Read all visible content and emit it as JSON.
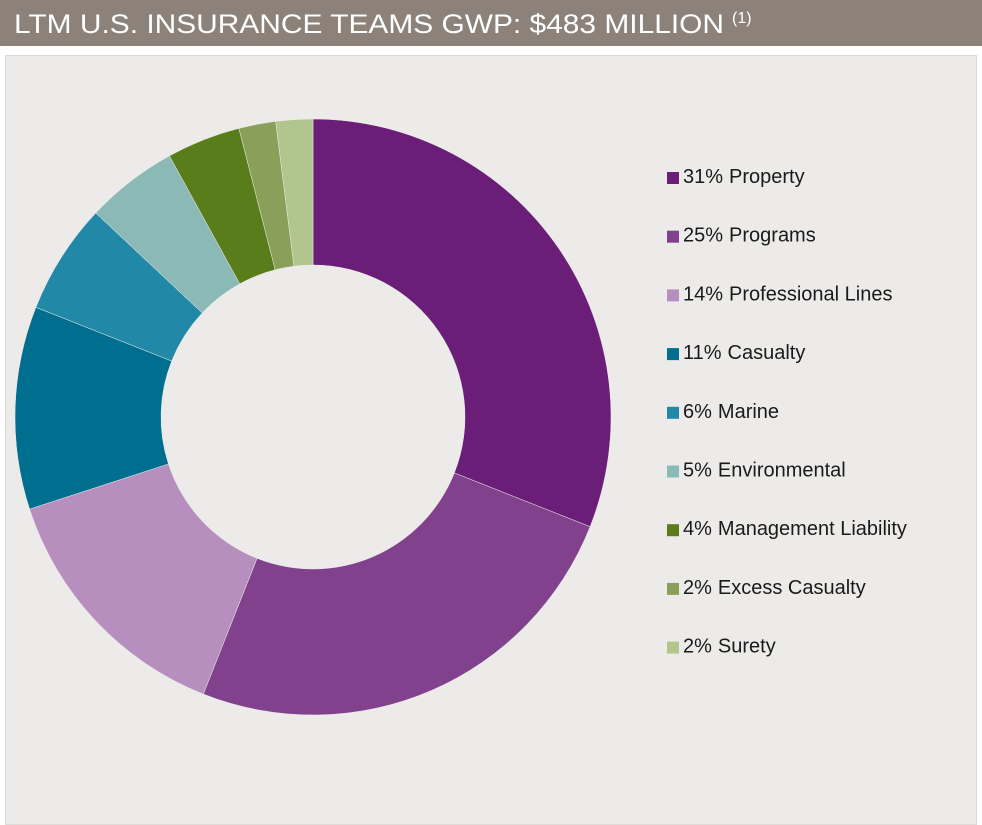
{
  "chart_data": {
    "type": "donut",
    "title": "LTM U.S. INSURANCE TEAMS GWP: $483 MILLION",
    "title_note": "(1)",
    "categories": [
      "Property",
      "Programs",
      "Professional Lines",
      "Casualty",
      "Marine",
      "Environmental",
      "Management Liability",
      "Excess Casualty",
      "Surety"
    ],
    "values": [
      31,
      25,
      14,
      11,
      6,
      5,
      4,
      2,
      2
    ],
    "value_labels": [
      "31%",
      "25%",
      "14%",
      "11%",
      "6%",
      "5%",
      "4%",
      "2%",
      "2%"
    ],
    "colors": [
      "#6b1e78",
      "#82418c",
      "#b78fbe",
      "#006e8f",
      "#2288a8",
      "#8bbab6",
      "#5a7d1b",
      "#8aa05a",
      "#b0c68c"
    ],
    "legend": "right"
  }
}
